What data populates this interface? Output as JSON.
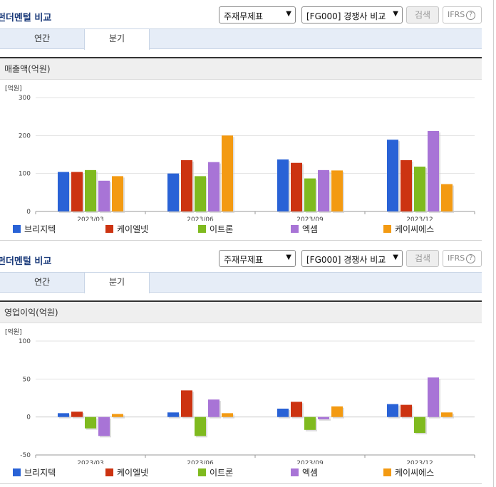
{
  "colors": {
    "s1": "#2962d6",
    "s2": "#cc3311",
    "s3": "#7fba1f",
    "s4": "#a874d6",
    "s5": "#f39a12"
  },
  "series_names": [
    "브리지텍",
    "케이엘넷",
    "이트론",
    "엑셈",
    "케이씨에스"
  ],
  "header": {
    "title": "펀더멘털 비교",
    "select1": "주재무제표",
    "select2": "[FG000] 경쟁사 비교",
    "search_label": "검색",
    "ifrs_label": "IFRS",
    "help_glyph": "?"
  },
  "tabs": [
    "연간",
    "분기"
  ],
  "chart_data": [
    {
      "type": "bar",
      "title": "매출액(억원)",
      "unit": "[억원]",
      "categories": [
        "2023/03",
        "2023/06",
        "2023/09",
        "2023/12"
      ],
      "ylim": [
        0,
        300
      ],
      "yticks": [
        0,
        100,
        200,
        300
      ],
      "grid": true,
      "legend": "bottom",
      "series": [
        {
          "name": "브리지텍",
          "values": [
            104,
            100,
            137,
            189
          ]
        },
        {
          "name": "케이엘넷",
          "values": [
            104,
            135,
            128,
            135
          ]
        },
        {
          "name": "이트론",
          "values": [
            109,
            93,
            87,
            118
          ]
        },
        {
          "name": "엑셈",
          "values": [
            81,
            130,
            109,
            212
          ]
        },
        {
          "name": "케이씨에스",
          "values": [
            93,
            200,
            108,
            72
          ]
        }
      ]
    },
    {
      "type": "bar",
      "title": "영업이익(억원)",
      "unit": "[억원]",
      "categories": [
        "2023/03",
        "2023/06",
        "2023/09",
        "2023/12"
      ],
      "ylim": [
        -50,
        100
      ],
      "yticks": [
        -50,
        0,
        50,
        100
      ],
      "grid": true,
      "legend": "bottom",
      "series": [
        {
          "name": "브리지텍",
          "values": [
            5,
            6,
            11,
            17
          ]
        },
        {
          "name": "케이엘넷",
          "values": [
            7,
            35,
            20,
            16
          ]
        },
        {
          "name": "이트론",
          "values": [
            -15,
            -25,
            -17,
            -21
          ]
        },
        {
          "name": "엑셈",
          "values": [
            -25,
            23,
            -3,
            52
          ]
        },
        {
          "name": "케이씨에스",
          "values": [
            4,
            5,
            14,
            6
          ]
        }
      ]
    }
  ]
}
